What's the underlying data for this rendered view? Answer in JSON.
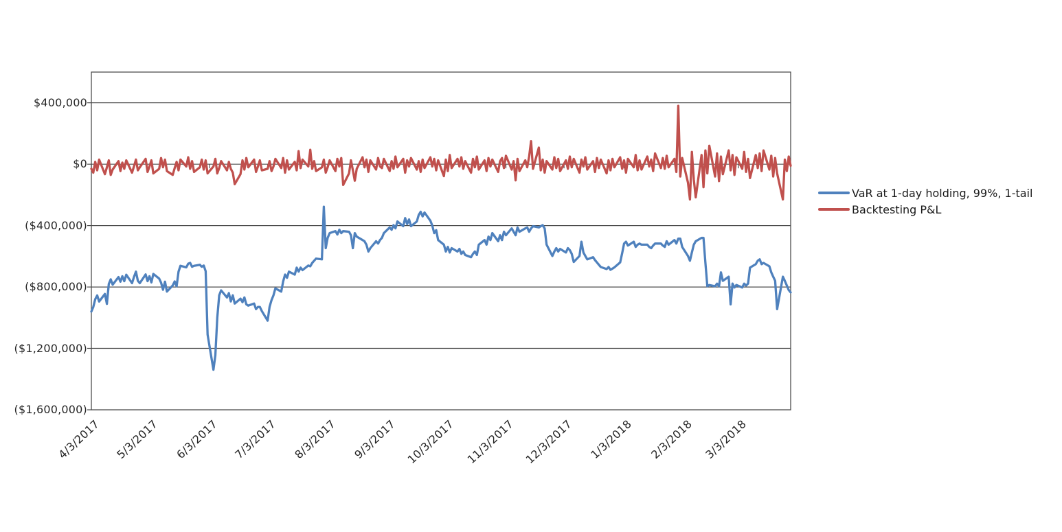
{
  "chart_data": {
    "type": "line",
    "title": "",
    "x_start_date": "4/3/2017",
    "x_end_date": "3/30/2018",
    "x_frequency": "weekdays",
    "x_tick_labels": [
      "4/3/2017",
      "5/3/2017",
      "6/3/2017",
      "7/3/2017",
      "8/3/2017",
      "9/3/2017",
      "10/3/2017",
      "11/3/2017",
      "12/3/2017",
      "1/3/2018",
      "2/3/2018",
      "3/3/2018"
    ],
    "y_ticks": [
      {
        "value": 400000,
        "label": "$400,000"
      },
      {
        "value": 0,
        "label": "$0"
      },
      {
        "value": -400000,
        "label": "($400,000)"
      },
      {
        "value": -800000,
        "label": "($800,000)"
      },
      {
        "value": -1200000,
        "label": "($1,200,000)"
      },
      {
        "value": -1600000,
        "label": "($1,600,000)"
      }
    ],
    "y_min": -1600000,
    "y_max": 600000,
    "y_major_unit": 400000,
    "grid": true,
    "grid_color": "#4d4d4d",
    "background": "#ffffff",
    "legend_position": "right",
    "series": [
      {
        "name": "VaR at 1-day holding, 99%, 1-tail",
        "color": "#4F81BD",
        "values": [
          -960000,
          -930000,
          -880000,
          -855000,
          -895000,
          -845000,
          -910000,
          -780000,
          -750000,
          -785000,
          -735000,
          -765000,
          -730000,
          -762000,
          -720000,
          -775000,
          -735000,
          -700000,
          -760000,
          -775000,
          -718000,
          -762000,
          -730000,
          -770000,
          -715000,
          -745000,
          -772000,
          -818000,
          -765000,
          -830000,
          -790000,
          -764000,
          -795000,
          -700000,
          -662000,
          -672000,
          -648000,
          -643000,
          -668000,
          -662000,
          -655000,
          -668000,
          -660000,
          -697000,
          -1110000,
          -1339000,
          -1245000,
          -1000000,
          -854000,
          -822000,
          -868000,
          -840000,
          -894000,
          -854000,
          -908000,
          -876000,
          -899000,
          -868000,
          -913000,
          -921000,
          -908000,
          -944000,
          -930000,
          -930000,
          -957000,
          -1019000,
          -930000,
          -885000,
          -854000,
          -809000,
          -830000,
          -764000,
          -719000,
          -740000,
          -700000,
          -719000,
          -674000,
          -700000,
          -674000,
          -690000,
          -660000,
          -665000,
          -643000,
          -629000,
          -615000,
          -620000,
          -277000,
          -547000,
          -480000,
          -449000,
          -436000,
          -458000,
          -427000,
          -449000,
          -436000,
          -440000,
          -463000,
          -547000,
          -449000,
          -472000,
          -494000,
          -502000,
          -524000,
          -569000,
          -547000,
          -502000,
          -517000,
          -494000,
          -480000,
          -449000,
          -412000,
          -427000,
          -397000,
          -418000,
          -373000,
          -404000,
          -351000,
          -390000,
          -360000,
          -404000,
          -373000,
          -330000,
          -310000,
          -340000,
          -315000,
          -368000,
          -400000,
          -449000,
          -430000,
          -494000,
          -524000,
          -569000,
          -539000,
          -575000,
          -547000,
          -569000,
          -552000,
          -584000,
          -569000,
          -591000,
          -606000,
          -584000,
          -569000,
          -591000,
          -524000,
          -494000,
          -524000,
          -472000,
          -494000,
          -449000,
          -502000,
          -463000,
          -494000,
          -440000,
          -463000,
          -418000,
          -440000,
          -463000,
          -412000,
          -440000,
          -418000,
          -412000,
          -440000,
          -418000,
          -404000,
          -412000,
          -404000,
          -397000,
          -418000,
          -524000,
          -598000,
          -569000,
          -547000,
          -569000,
          -552000,
          -575000,
          -547000,
          -560000,
          -584000,
          -637000,
          -598000,
          -505000,
          -575000,
          -598000,
          -620000,
          -606000,
          -625000,
          -640000,
          -655000,
          -670000,
          -683000,
          -670000,
          -688000,
          -680000,
          -672000,
          -640000,
          -580000,
          -517000,
          -505000,
          -530000,
          -505000,
          -539000,
          -524000,
          -517000,
          -524000,
          -524000,
          -539000,
          -547000,
          -530000,
          -517000,
          -517000,
          -530000,
          -539000,
          -502000,
          -524000,
          -494000,
          -517000,
          -485000,
          -485000,
          -539000,
          -598000,
          -629000,
          -575000,
          -524000,
          -502000,
          -480000,
          -480000,
          -643000,
          -795000,
          -787000,
          -795000,
          -778000,
          -795000,
          -705000,
          -760000,
          -733000,
          -913000,
          -778000,
          -803000,
          -787000,
          -803000,
          -778000,
          -790000,
          -778000,
          -674000,
          -651000,
          -629000,
          -620000,
          -651000,
          -643000,
          -665000,
          -705000,
          -733000,
          -760000,
          -944000,
          -733000,
          -760000,
          -790000,
          -820000,
          -835000
        ]
      },
      {
        "name": "Backtesting P&L",
        "color": "#C0504D",
        "values": [
          -30000,
          -55000,
          15000,
          -40000,
          30000,
          -65000,
          -20000,
          25000,
          -70000,
          -35000,
          20000,
          -45000,
          10000,
          -30000,
          25000,
          -55000,
          -15000,
          30000,
          -40000,
          -20000,
          35000,
          -50000,
          -15000,
          25000,
          -60000,
          -30000,
          40000,
          -20000,
          30000,
          -45000,
          -70000,
          -25000,
          15000,
          -40000,
          30000,
          -15000,
          45000,
          -30000,
          20000,
          -50000,
          -20000,
          30000,
          -35000,
          25000,
          -60000,
          -15000,
          35000,
          -60000,
          -25000,
          20000,
          -40000,
          15000,
          -30000,
          -55000,
          -130000,
          -65000,
          25000,
          -35000,
          40000,
          -20000,
          30000,
          -50000,
          -15000,
          25000,
          -40000,
          -30000,
          20000,
          -45000,
          -15000,
          35000,
          -25000,
          40000,
          -55000,
          25000,
          -35000,
          15000,
          -40000,
          85000,
          -25000,
          30000,
          -15000,
          94000,
          -30000,
          20000,
          -45000,
          -20000,
          30000,
          -55000,
          -20000,
          25000,
          -45000,
          35000,
          -15000,
          40000,
          -135000,
          -60000,
          25000,
          -40000,
          -108000,
          -30000,
          45000,
          -20000,
          30000,
          -50000,
          25000,
          -35000,
          40000,
          -15000,
          -25000,
          35000,
          -45000,
          20000,
          -30000,
          50000,
          -20000,
          35000,
          -55000,
          25000,
          -15000,
          40000,
          -35000,
          20000,
          -50000,
          30000,
          -25000,
          45000,
          -15000,
          35000,
          -40000,
          25000,
          -78000,
          30000,
          -45000,
          60000,
          -25000,
          35000,
          -15000,
          45000,
          -30000,
          20000,
          -55000,
          35000,
          -20000,
          50000,
          -35000,
          25000,
          -45000,
          40000,
          -15000,
          30000,
          -50000,
          20000,
          40000,
          -25000,
          55000,
          -35000,
          20000,
          -105000,
          35000,
          -45000,
          25000,
          -20000,
          50000,
          150000,
          -30000,
          108000,
          -40000,
          30000,
          -55000,
          20000,
          -35000,
          45000,
          -25000,
          35000,
          -45000,
          25000,
          -30000,
          50000,
          -20000,
          35000,
          -55000,
          30000,
          -15000,
          45000,
          -35000,
          20000,
          -50000,
          40000,
          -25000,
          30000,
          -60000,
          25000,
          -40000,
          35000,
          -20000,
          45000,
          -30000,
          25000,
          -55000,
          35000,
          -20000,
          60000,
          -40000,
          25000,
          -35000,
          50000,
          -15000,
          30000,
          -45000,
          70000,
          -25000,
          40000,
          -30000,
          55000,
          -20000,
          35000,
          -50000,
          380000,
          -80000,
          40000,
          -120000,
          -230000,
          80000,
          -100000,
          -216000,
          60000,
          -150000,
          90000,
          -60000,
          120000,
          -80000,
          70000,
          -110000,
          50000,
          -65000,
          90000,
          -40000,
          60000,
          -70000,
          45000,
          -30000,
          80000,
          -50000,
          35000,
          -90000,
          60000,
          -25000,
          70000,
          -45000,
          90000,
          -35000,
          55000,
          -80000,
          40000,
          -60000,
          -230000,
          30000,
          -45000,
          50000,
          -10000
        ]
      }
    ]
  }
}
